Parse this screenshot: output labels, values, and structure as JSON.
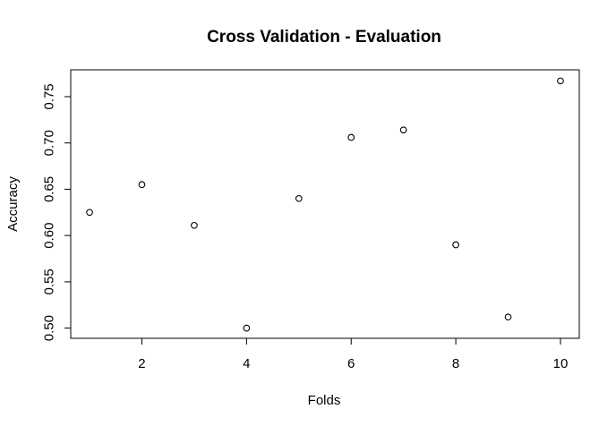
{
  "chart_data": {
    "type": "scatter",
    "title": "Cross Validation - Evaluation",
    "xlabel": "Folds",
    "ylabel": "Accuracy",
    "xlim": [
      0.64,
      10.36
    ],
    "ylim": [
      0.489,
      0.779
    ],
    "x_ticks": [
      2,
      4,
      6,
      8,
      10
    ],
    "y_ticks": [
      0.5,
      0.55,
      0.6,
      0.65,
      0.7,
      0.75
    ],
    "x_tick_labels": [
      "2",
      "4",
      "6",
      "8",
      "10"
    ],
    "y_tick_labels": [
      "0.50",
      "0.55",
      "0.60",
      "0.65",
      "0.70",
      "0.75"
    ],
    "grid": false,
    "legend": "none",
    "marker": "open-circle",
    "point_color": "#000000",
    "x": [
      1,
      2,
      3,
      4,
      5,
      6,
      7,
      8,
      9,
      10
    ],
    "y": [
      0.625,
      0.655,
      0.611,
      0.5,
      0.64,
      0.706,
      0.714,
      0.59,
      0.512,
      0.767
    ]
  }
}
